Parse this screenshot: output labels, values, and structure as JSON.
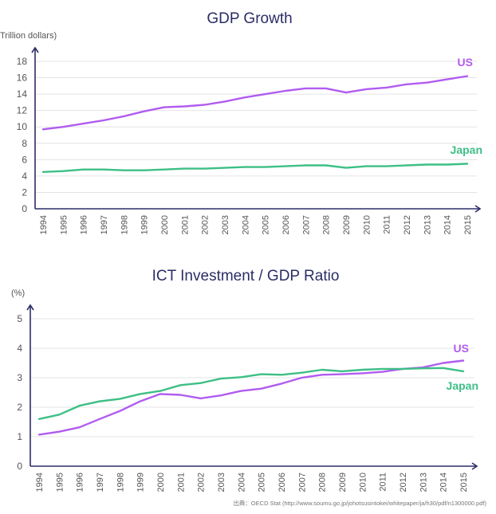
{
  "colors": {
    "us": "#b15cf0",
    "japan": "#3dbf86",
    "axis": "#2b2d66"
  },
  "chart_data": [
    {
      "type": "line",
      "title": "GDP Growth",
      "ylabel": "Trillion dollars)",
      "xlabel": "",
      "ylim": [
        0,
        18
      ],
      "yticks": [
        0,
        2,
        4,
        6,
        8,
        10,
        12,
        14,
        16,
        18
      ],
      "ytick_labels": [
        "0",
        "2",
        "4",
        "6",
        "8",
        "10",
        "12",
        "14",
        "16",
        "18"
      ],
      "grid": true,
      "categories": [
        "1994",
        "1995",
        "1996",
        "1997",
        "1998",
        "1999",
        "2000",
        "2001",
        "2002",
        "2003",
        "2004",
        "2005",
        "2006",
        "2007",
        "2008",
        "2009",
        "2010",
        "2011",
        "2012",
        "2013",
        "2014",
        "2015"
      ],
      "series": [
        {
          "name": "US",
          "color": "#b15cf0",
          "values": [
            9.7,
            10.0,
            10.4,
            10.8,
            11.3,
            11.9,
            12.4,
            12.5,
            12.7,
            13.1,
            13.6,
            14.0,
            14.4,
            14.7,
            14.7,
            14.2,
            14.6,
            14.8,
            15.2,
            15.4,
            15.8,
            16.2
          ]
        },
        {
          "name": "Japan",
          "color": "#3dbf86",
          "values": [
            4.5,
            4.6,
            4.8,
            4.8,
            4.7,
            4.7,
            4.8,
            4.9,
            4.9,
            5.0,
            5.1,
            5.1,
            5.2,
            5.3,
            5.3,
            5.0,
            5.2,
            5.2,
            5.3,
            5.4,
            5.4,
            5.5
          ]
        }
      ]
    },
    {
      "type": "line",
      "title": "ICT Investment / GDP Ratio",
      "ylabel": "(%)",
      "xlabel": "",
      "ylim": [
        0,
        5
      ],
      "yticks": [
        0,
        1,
        2,
        3,
        4,
        5
      ],
      "ytick_labels": [
        "0",
        "1",
        "2",
        "3",
        "4",
        "5"
      ],
      "grid": true,
      "categories": [
        "1994",
        "1995",
        "1996",
        "1997",
        "1998",
        "1999",
        "2000",
        "2001",
        "2002",
        "2003",
        "2004",
        "2005",
        "2006",
        "2007",
        "2008",
        "2009",
        "2010",
        "2011",
        "2012",
        "2013",
        "2014",
        "2015"
      ],
      "series": [
        {
          "name": "US",
          "color": "#b15cf0",
          "values": [
            1.07,
            1.17,
            1.32,
            1.6,
            1.87,
            2.2,
            2.45,
            2.42,
            2.3,
            2.4,
            2.55,
            2.63,
            2.8,
            3.0,
            3.1,
            3.12,
            3.15,
            3.2,
            3.3,
            3.35,
            3.5,
            3.58
          ]
        },
        {
          "name": "Japan",
          "color": "#3dbf86",
          "values": [
            1.6,
            1.75,
            2.05,
            2.2,
            2.28,
            2.45,
            2.55,
            2.75,
            2.82,
            2.97,
            3.02,
            3.12,
            3.1,
            3.17,
            3.27,
            3.22,
            3.27,
            3.3,
            3.3,
            3.32,
            3.33,
            3.22
          ]
        }
      ]
    }
  ],
  "source": "出典：OECD Stat (http://www.soumu.go.jp/johotsusintokei/whitepaper/ja/h30/pdf/n1300000.pdf)"
}
